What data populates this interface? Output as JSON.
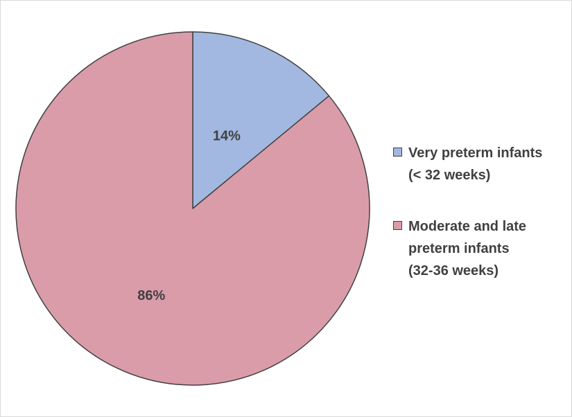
{
  "chart_data": {
    "type": "pie",
    "title": "",
    "start_angle_deg": 0,
    "direction": "clockwise",
    "series": [
      {
        "name": "Very preterm infants (< 32 weeks)",
        "legend_lines": [
          "Very preterm infants",
          "(< 32 weeks)"
        ],
        "value": 14,
        "label": "14%",
        "color": "#a2b8e0"
      },
      {
        "name": "Moderate and late preterm infants (32-36 weeks)",
        "legend_lines": [
          "Moderate and late",
          "preterm infants",
          "(32-36 weeks)"
        ],
        "value": 86,
        "label": "86%",
        "color": "#da9ca9"
      }
    ],
    "legend": {
      "placement": "right"
    },
    "slice_border_color": "#404040",
    "label_color": "#404040"
  }
}
